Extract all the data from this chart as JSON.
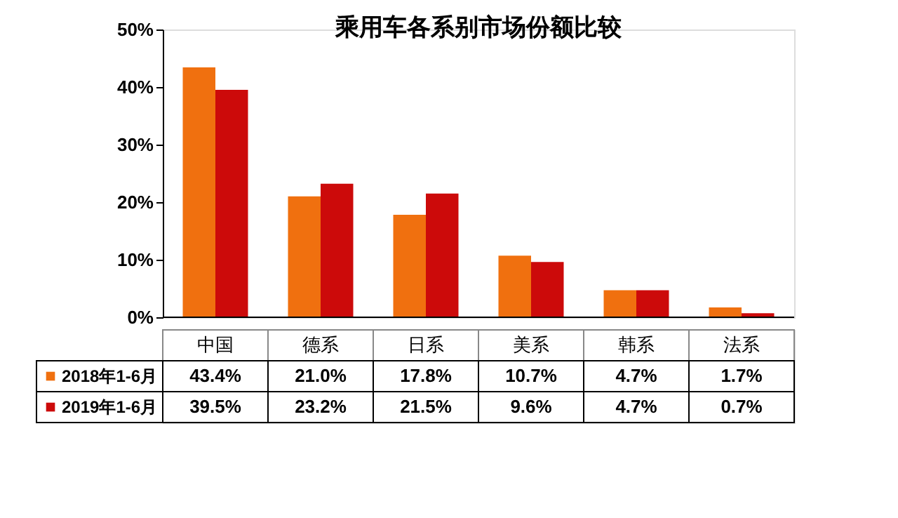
{
  "chart_data": {
    "type": "bar",
    "title": "乘用车各系别市场份额比较",
    "categories": [
      "中国",
      "德系",
      "日系",
      "美系",
      "韩系",
      "法系"
    ],
    "series": [
      {
        "name": "2018年1-6月",
        "color": "#f0700f",
        "values": [
          43.4,
          21.0,
          17.8,
          10.7,
          4.7,
          1.7
        ],
        "value_labels": [
          "43.4%",
          "21.0%",
          "17.8%",
          "10.7%",
          "4.7%",
          "1.7%"
        ]
      },
      {
        "name": "2019年1-6月",
        "color": "#cc0a0a",
        "values": [
          39.5,
          23.2,
          21.5,
          9.6,
          4.7,
          0.7
        ],
        "value_labels": [
          "39.5%",
          "23.2%",
          "21.5%",
          "9.6%",
          "4.7%",
          "0.7%"
        ]
      }
    ],
    "ylim": [
      0,
      50
    ],
    "yticks": [
      {
        "value": 0,
        "label": "0%"
      },
      {
        "value": 10,
        "label": "10%"
      },
      {
        "value": 20,
        "label": "20%"
      },
      {
        "value": 30,
        "label": "30%"
      },
      {
        "value": 40,
        "label": "40%"
      },
      {
        "value": 50,
        "label": "50%"
      }
    ],
    "grid": false,
    "legend": "bottom"
  }
}
